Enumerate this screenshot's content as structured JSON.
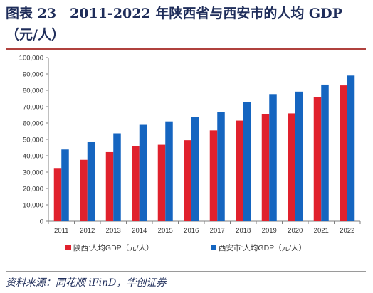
{
  "figure": {
    "title_line1": "图表 23　2011-2022 年陕西省与西安市的人均 GDP",
    "title_line2": "（元/人）",
    "source": "资料来源：同花顺 iFinD，华创证券"
  },
  "colors": {
    "series1": "#e0212d",
    "series2": "#1565c0",
    "title": "#1f2d5a",
    "rule": "#b0413e",
    "axis": "#7f7f7f"
  },
  "chart_data": {
    "type": "bar",
    "categories": [
      "2011",
      "2012",
      "2013",
      "2014",
      "2015",
      "2016",
      "2017",
      "2018",
      "2019",
      "2020",
      "2021",
      "2022"
    ],
    "series": [
      {
        "name": "陕西:人均GDP（元/人）",
        "values": [
          32500,
          37500,
          42200,
          45800,
          46700,
          49500,
          55500,
          61500,
          65600,
          65900,
          76000,
          83000
        ]
      },
      {
        "name": "西安市:人均GDP（元/人）",
        "values": [
          43800,
          48700,
          53700,
          58900,
          61000,
          63500,
          66700,
          73000,
          77700,
          79200,
          83500,
          89000
        ]
      }
    ],
    "ylim": [
      0,
      100000
    ],
    "yticks": [
      "0",
      "10,000",
      "20,000",
      "30,000",
      "40,000",
      "50,000",
      "60,000",
      "70,000",
      "80,000",
      "90,000",
      "100,000"
    ],
    "ytick_values": [
      0,
      10000,
      20000,
      30000,
      40000,
      50000,
      60000,
      70000,
      80000,
      90000,
      100000
    ],
    "grid": false,
    "legend_position": "bottom"
  }
}
